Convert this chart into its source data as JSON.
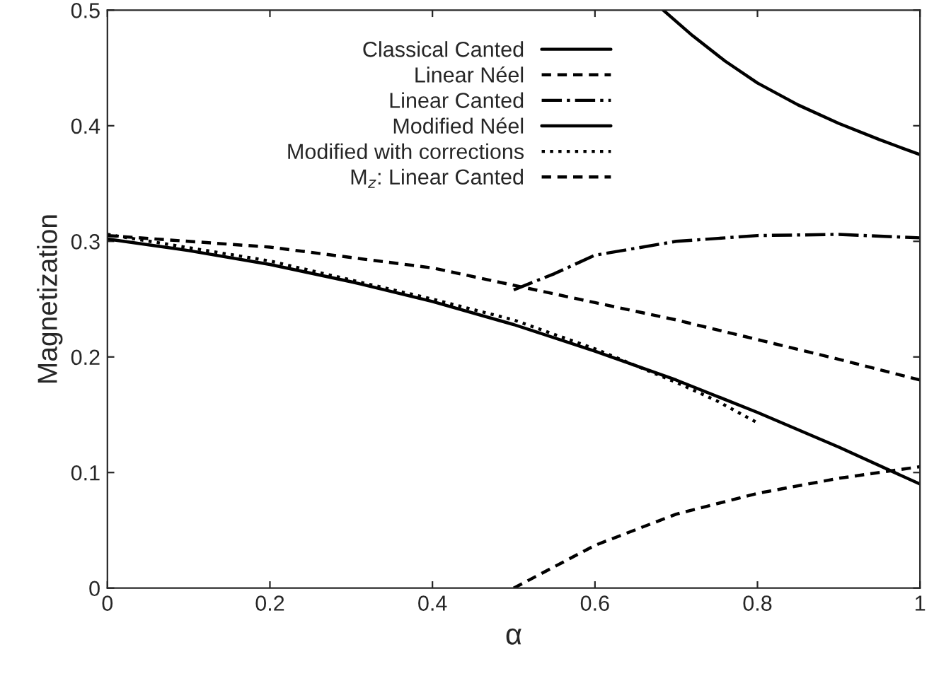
{
  "chart_data": {
    "type": "line",
    "xlabel": "α",
    "ylabel": "Magnetization",
    "xlim": [
      0,
      1
    ],
    "ylim": [
      0,
      0.5
    ],
    "xticks": [
      0,
      0.2,
      0.4,
      0.6,
      0.8,
      1
    ],
    "yticks": [
      0,
      0.1,
      0.2,
      0.3,
      0.4,
      0.5
    ],
    "grid": false,
    "legend": "top",
    "marker": "none",
    "series": [
      {
        "name": "Classical Canted",
        "color": "#000000",
        "line_style": "solid",
        "x": [
          0.684,
          0.72,
          0.76,
          0.8,
          0.85,
          0.9,
          0.95,
          1.0
        ],
        "values": [
          0.5,
          0.478,
          0.456,
          0.437,
          0.418,
          0.402,
          0.388,
          0.375
        ]
      },
      {
        "name": "Linear Néel",
        "color": "#000000",
        "line_style": "dashed",
        "x": [
          0,
          0.2,
          0.4,
          0.5,
          0.6,
          0.7,
          0.8,
          0.9,
          1.0
        ],
        "values": [
          0.305,
          0.295,
          0.277,
          0.262,
          0.247,
          0.232,
          0.215,
          0.198,
          0.18
        ]
      },
      {
        "name": "Linear Canted",
        "color": "#000000",
        "line_style": "dashdot",
        "x": [
          0.5,
          0.55,
          0.6,
          0.7,
          0.8,
          0.9,
          1.0
        ],
        "values": [
          0.258,
          0.272,
          0.288,
          0.3,
          0.305,
          0.306,
          0.303
        ]
      },
      {
        "name": "Modified Néel",
        "color": "#000000",
        "line_style": "solid",
        "x": [
          0,
          0.1,
          0.2,
          0.3,
          0.4,
          0.5,
          0.6,
          0.7,
          0.8,
          0.9,
          1.0
        ],
        "values": [
          0.302,
          0.292,
          0.28,
          0.265,
          0.248,
          0.228,
          0.205,
          0.18,
          0.152,
          0.122,
          0.09
        ]
      },
      {
        "name": "Modified with corrections",
        "color": "#000000",
        "line_style": "dotted",
        "x": [
          0,
          0.2,
          0.4,
          0.5,
          0.6,
          0.7,
          0.75,
          0.8
        ],
        "values": [
          0.306,
          0.283,
          0.25,
          0.232,
          0.207,
          0.178,
          0.162,
          0.143
        ]
      },
      {
        "name": "M$_{z}$: Linear Canted",
        "color": "#000000",
        "line_style": "dashed",
        "x": [
          0.5,
          0.6,
          0.7,
          0.8,
          0.9,
          1.0
        ],
        "values": [
          0,
          0.037,
          0.064,
          0.082,
          0.095,
          0.105
        ]
      }
    ]
  }
}
